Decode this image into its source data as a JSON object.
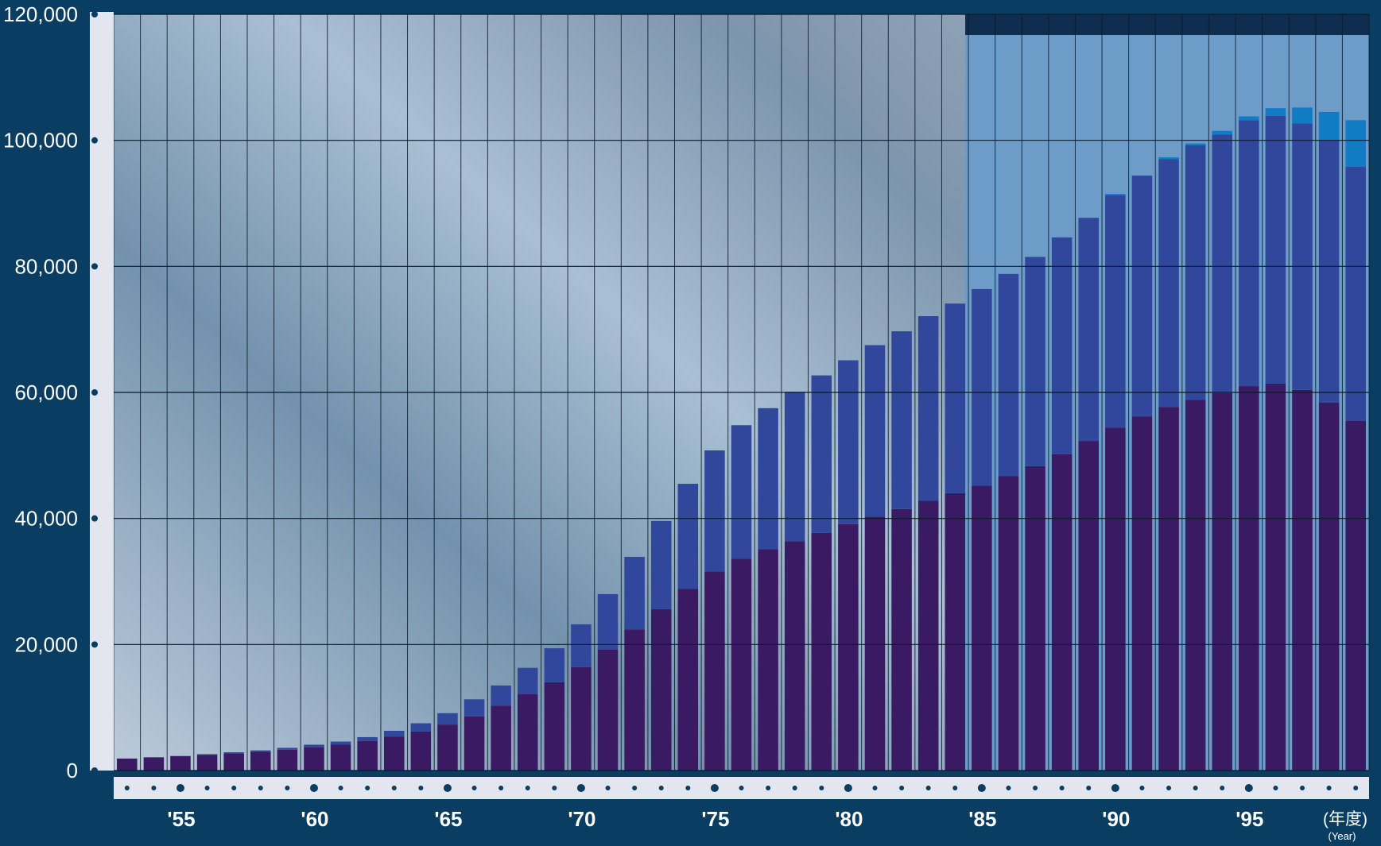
{
  "colors": {
    "page_background": "#0a3d62",
    "plot_background_left": "#8aa4bb",
    "plot_background_right": "#6e9cc9",
    "top_band": "#0e2d4f",
    "axis_strip": "#e3e6ef",
    "series_bottom": "#3a1a63",
    "series_middle": "#31479c",
    "series_top": "#0f7cc4",
    "text": "#ffffff"
  },
  "chart_data": {
    "type": "bar",
    "stacked": true,
    "title": "",
    "xlabel": "(年度)",
    "xlabel_en": "(Year)",
    "ylabel": "",
    "ylim": [
      0,
      120000
    ],
    "yticks": [
      0,
      20000,
      40000,
      60000,
      80000,
      100000,
      120000
    ],
    "ytick_labels": [
      "0",
      "20,000",
      "40,000",
      "60,000",
      "80,000",
      "100,000",
      "120,000"
    ],
    "x_tick_labels": [
      {
        "year": 1955,
        "label": "'55"
      },
      {
        "year": 1960,
        "label": "'60"
      },
      {
        "year": 1965,
        "label": "'65"
      },
      {
        "year": 1970,
        "label": "'70"
      },
      {
        "year": 1975,
        "label": "'75"
      },
      {
        "year": 1980,
        "label": "'80"
      },
      {
        "year": 1985,
        "label": "'85"
      },
      {
        "year": 1990,
        "label": "'90"
      },
      {
        "year": 1995,
        "label": "'95"
      }
    ],
    "grid": true,
    "highlight_from_year": 1985,
    "categories": [
      1953,
      1954,
      1955,
      1956,
      1957,
      1958,
      1959,
      1960,
      1961,
      1962,
      1963,
      1964,
      1965,
      1966,
      1967,
      1968,
      1969,
      1970,
      1971,
      1972,
      1973,
      1974,
      1975,
      1976,
      1977,
      1978,
      1979,
      1980,
      1981,
      1982,
      1983,
      1984,
      1985,
      1986,
      1987,
      1988,
      1989,
      1990,
      1991,
      1992,
      1993,
      1994,
      1995,
      1996,
      1997,
      1998,
      1999
    ],
    "series": [
      {
        "values": [
          1900,
          2100,
          2300,
          2500,
          2700,
          3000,
          3300,
          3700,
          4100,
          4700,
          5400,
          6200,
          7300,
          8600,
          10300,
          12100,
          14000,
          16400,
          19200,
          22400,
          25600,
          28800,
          31600,
          33600,
          35100,
          36400,
          37700,
          39100,
          40300,
          41500,
          42800,
          44000,
          45200,
          46700,
          48300,
          50200,
          52300,
          54400,
          56200,
          57700,
          58800,
          59900,
          61000,
          61400,
          60400,
          58400,
          55500
        ]
      },
      {
        "values": [
          0,
          0,
          0,
          100,
          200,
          200,
          300,
          400,
          500,
          600,
          900,
          1300,
          1800,
          2700,
          3200,
          4200,
          5400,
          6800,
          8800,
          11500,
          14000,
          16700,
          19200,
          21200,
          22400,
          23700,
          25000,
          26000,
          27200,
          28200,
          29300,
          30100,
          31200,
          32100,
          33200,
          34400,
          35400,
          36900,
          38200,
          39300,
          40400,
          41000,
          42200,
          42500,
          42300,
          41600,
          40300
        ]
      },
      {
        "values": [
          0,
          0,
          0,
          0,
          0,
          0,
          0,
          0,
          0,
          0,
          0,
          0,
          0,
          0,
          0,
          0,
          0,
          0,
          0,
          0,
          0,
          0,
          0,
          0,
          0,
          0,
          0,
          0,
          0,
          0,
          0,
          0,
          0,
          0,
          0,
          0,
          0,
          200,
          0,
          300,
          300,
          600,
          600,
          1200,
          2500,
          4500,
          7400
        ]
      }
    ]
  }
}
